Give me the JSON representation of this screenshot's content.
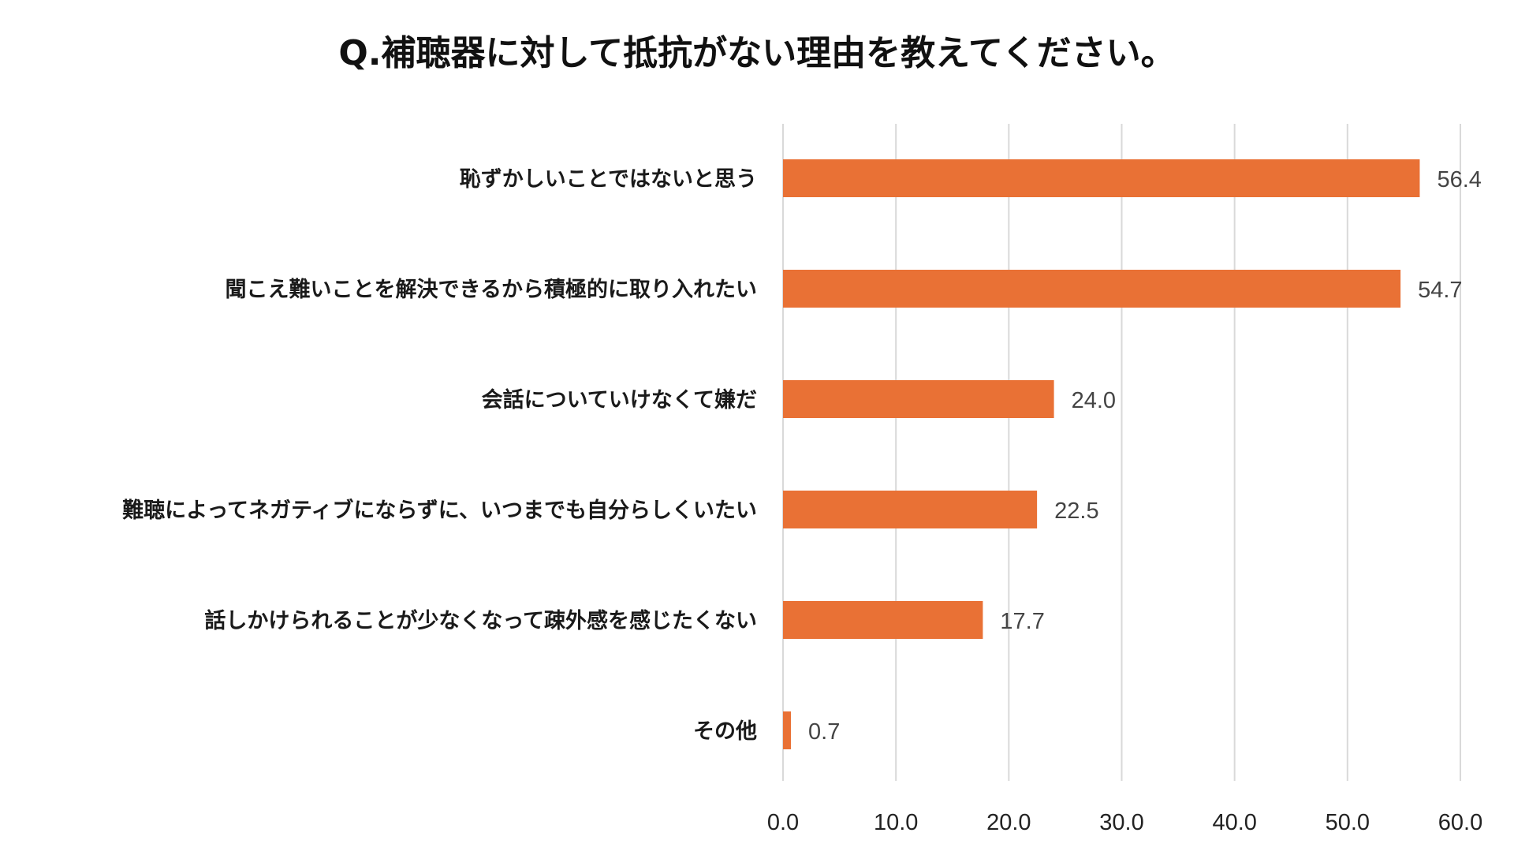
{
  "chart_data": {
    "type": "bar",
    "orientation": "horizontal",
    "title": "Q.補聴器に対して抵抗がない理由を教えてください。",
    "categories": [
      "恥ずかしいことではないと思う",
      "聞こえ難いことを解決できるから積極的に取り入れたい",
      "会話についていけなくて嫌だ",
      "難聴によってネガティブにならずに、いつまでも自分らしくいたい",
      "話しかけられることが少なくなって疎外感を感じたくない",
      "その他"
    ],
    "values": [
      56.4,
      54.7,
      24.0,
      22.5,
      17.7,
      0.7
    ],
    "value_labels": [
      "56.4",
      "54.7",
      "24.0",
      "22.5",
      "17.7",
      "0.7"
    ],
    "xlim": [
      0,
      60
    ],
    "ticks": [
      "0.0",
      "10.0",
      "20.0",
      "30.0",
      "40.0",
      "50.0",
      "60.0"
    ],
    "tick_values": [
      0,
      10,
      20,
      30,
      40,
      50,
      60
    ],
    "grid": true,
    "legend": "none",
    "colors": {
      "bar": "#E97135",
      "grid": "#D9D9D9",
      "value_text": "#444444",
      "label_text": "#1A1A1A"
    }
  }
}
